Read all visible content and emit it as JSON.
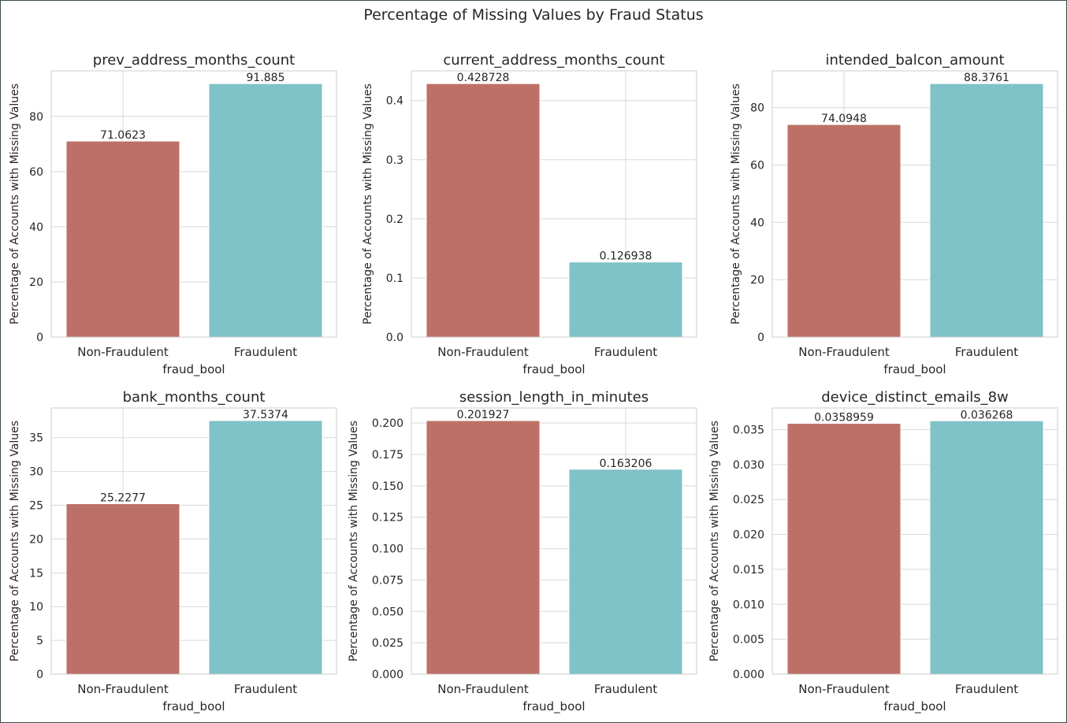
{
  "figure": {
    "suptitle": "Percentage of Missing Values by Fraud Status",
    "colors": {
      "non_fraud": "#bd7067",
      "fraud": "#7fc2c7",
      "grid": "#d9d9d9",
      "axes_edge": "#cccccc",
      "text": "#262626"
    }
  },
  "chart_data": [
    {
      "type": "bar",
      "title": "prev_address_months_count",
      "xlabel": "fraud_bool",
      "ylabel": "Percentage of Accounts with Missing Values",
      "categories": [
        "Non-Fraudulent",
        "Fraudulent"
      ],
      "values": [
        71.0623,
        91.885
      ],
      "value_labels": [
        "71.0623",
        "91.885"
      ],
      "ylim": [
        0,
        96.5
      ],
      "yticks": [
        0,
        20,
        40,
        60,
        80
      ],
      "ytick_labels": [
        "0",
        "20",
        "40",
        "60",
        "80"
      ],
      "grid": true
    },
    {
      "type": "bar",
      "title": "current_address_months_count",
      "xlabel": "fraud_bool",
      "ylabel": "Percentage of Accounts with Missing Values",
      "categories": [
        "Non-Fraudulent",
        "Fraudulent"
      ],
      "values": [
        0.428728,
        0.126938
      ],
      "value_labels": [
        "0.428728",
        "0.126938"
      ],
      "ylim": [
        0,
        0.4502
      ],
      "yticks": [
        0.0,
        0.1,
        0.2,
        0.3,
        0.4
      ],
      "ytick_labels": [
        "0.0",
        "0.1",
        "0.2",
        "0.3",
        "0.4"
      ],
      "grid": true
    },
    {
      "type": "bar",
      "title": "intended_balcon_amount",
      "xlabel": "fraud_bool",
      "ylabel": "Percentage of Accounts with Missing Values",
      "categories": [
        "Non-Fraudulent",
        "Fraudulent"
      ],
      "values": [
        74.0948,
        88.3761
      ],
      "value_labels": [
        "74.0948",
        "88.3761"
      ],
      "ylim": [
        0,
        92.8
      ],
      "yticks": [
        0,
        20,
        40,
        60,
        80
      ],
      "ytick_labels": [
        "0",
        "20",
        "40",
        "60",
        "80"
      ],
      "grid": true
    },
    {
      "type": "bar",
      "title": "bank_months_count",
      "xlabel": "fraud_bool",
      "ylabel": "Percentage of Accounts with Missing Values",
      "categories": [
        "Non-Fraudulent",
        "Fraudulent"
      ],
      "values": [
        25.2277,
        37.5374
      ],
      "value_labels": [
        "25.2277",
        "37.5374"
      ],
      "ylim": [
        0,
        39.4
      ],
      "yticks": [
        0,
        5,
        10,
        15,
        20,
        25,
        30,
        35
      ],
      "ytick_labels": [
        "0",
        "5",
        "10",
        "15",
        "20",
        "25",
        "30",
        "35"
      ],
      "grid": true
    },
    {
      "type": "bar",
      "title": "session_length_in_minutes",
      "xlabel": "fraud_bool",
      "ylabel": "Percentage of Accounts with Missing Values",
      "categories": [
        "Non-Fraudulent",
        "Fraudulent"
      ],
      "values": [
        0.201927,
        0.163206
      ],
      "value_labels": [
        "0.201927",
        "0.163206"
      ],
      "ylim": [
        0,
        0.212
      ],
      "yticks": [
        0.0,
        0.025,
        0.05,
        0.075,
        0.1,
        0.125,
        0.15,
        0.175,
        0.2
      ],
      "ytick_labels": [
        "0.000",
        "0.025",
        "0.050",
        "0.075",
        "0.100",
        "0.125",
        "0.150",
        "0.175",
        "0.200"
      ],
      "grid": true
    },
    {
      "type": "bar",
      "title": "device_distinct_emails_8w",
      "xlabel": "fraud_bool",
      "ylabel": "Percentage of Accounts with Missing Values",
      "categories": [
        "Non-Fraudulent",
        "Fraudulent"
      ],
      "values": [
        0.0358959,
        0.036268
      ],
      "value_labels": [
        "0.0358959",
        "0.036268"
      ],
      "ylim": [
        0,
        0.0381
      ],
      "yticks": [
        0.0,
        0.005,
        0.01,
        0.015,
        0.02,
        0.025,
        0.03,
        0.035
      ],
      "ytick_labels": [
        "0.000",
        "0.005",
        "0.010",
        "0.015",
        "0.020",
        "0.025",
        "0.030",
        "0.035"
      ],
      "grid": true
    }
  ]
}
